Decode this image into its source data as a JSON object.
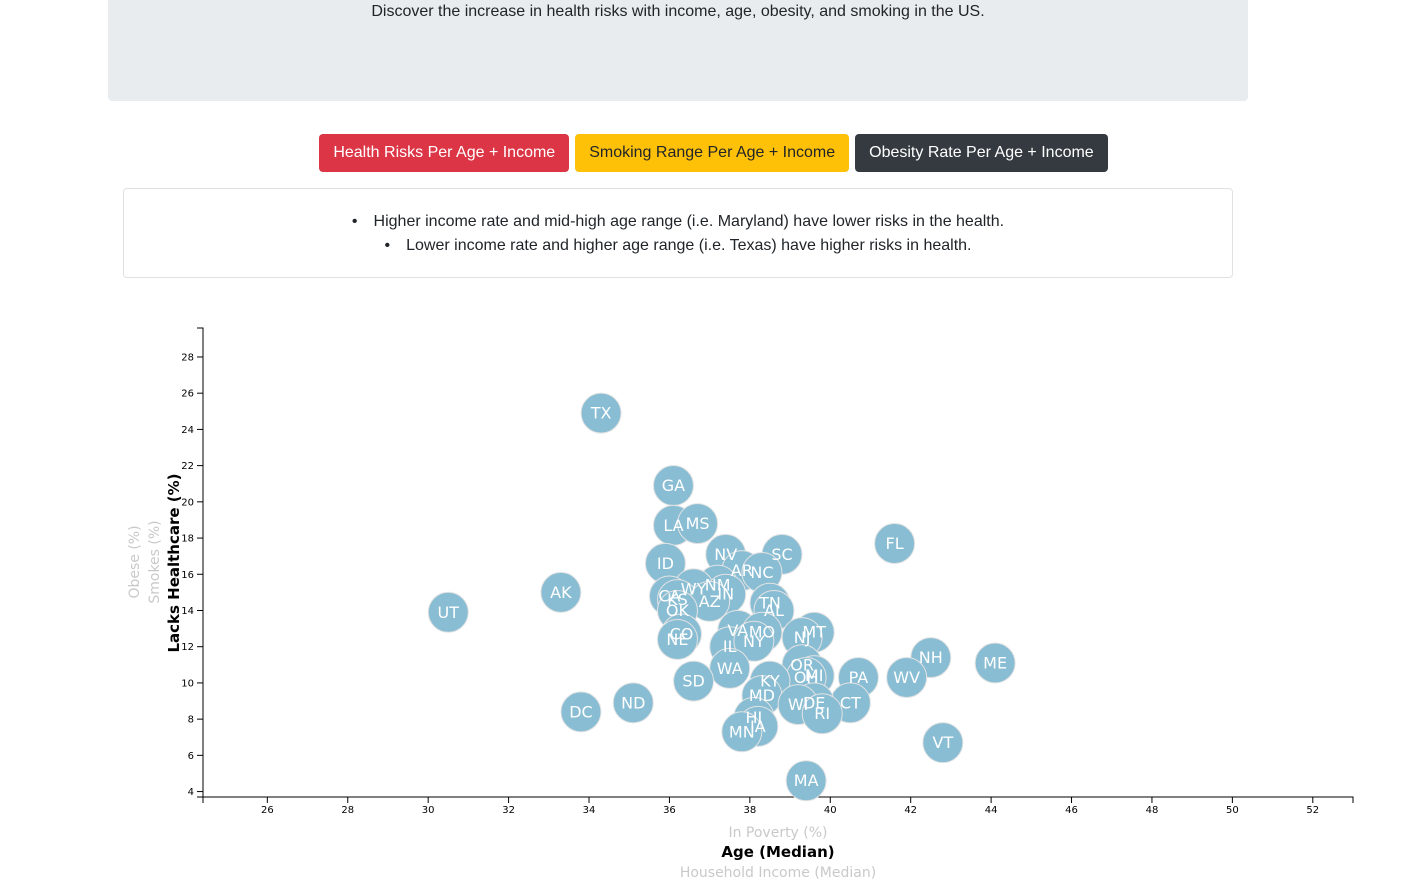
{
  "header": {
    "subtitle": "Discover the increase in health risks with income, age, obesity, and smoking in the US."
  },
  "buttons": {
    "health": "Health Risks Per Age + Income",
    "smoking": "Smoking Range Per Age + Income",
    "obesity": "Obesity Rate Per Age + Income"
  },
  "notes": {
    "line1": "Higher income rate and mid-high age range (i.e. Maryland) have lower risks in the health.",
    "line2": "Lower income rate and higher age range (i.e. Texas) have higher risks in health."
  },
  "colors": {
    "circle": "#89bdd3",
    "danger": "#dc3545",
    "warning": "#ffc107",
    "dark": "#343a40"
  },
  "chart_data": {
    "type": "scatter",
    "title": "",
    "xlabel": "Age (Median)",
    "ylabel": "Lacks Healthcare (%)",
    "x_inactive_labels": [
      "In Poverty (%)",
      "Household Income (Median)"
    ],
    "y_inactive_labels": [
      "Smokes (%)",
      "Obese (%)"
    ],
    "xlim": [
      24.4,
      53
    ],
    "ylim": [
      3.7,
      29.6
    ],
    "x_ticks": [
      26,
      28,
      30,
      32,
      34,
      36,
      38,
      40,
      42,
      44,
      46,
      48,
      50,
      52
    ],
    "y_ticks": [
      4,
      6,
      8,
      10,
      12,
      14,
      16,
      18,
      20,
      22,
      24,
      26,
      28
    ],
    "grid": false,
    "legend": "none",
    "points": [
      {
        "label": "TX",
        "x": 34.3,
        "y": 24.9
      },
      {
        "label": "GA",
        "x": 36.1,
        "y": 20.9
      },
      {
        "label": "LA",
        "x": 36.1,
        "y": 18.7
      },
      {
        "label": "MS",
        "x": 36.7,
        "y": 18.8
      },
      {
        "label": "FL",
        "x": 41.6,
        "y": 17.7
      },
      {
        "label": "NV",
        "x": 37.4,
        "y": 17.1
      },
      {
        "label": "SC",
        "x": 38.8,
        "y": 17.1
      },
      {
        "label": "ID",
        "x": 35.9,
        "y": 16.6
      },
      {
        "label": "AR",
        "x": 37.8,
        "y": 16.2
      },
      {
        "label": "NC",
        "x": 38.3,
        "y": 16.1
      },
      {
        "label": "AK",
        "x": 33.3,
        "y": 15.0
      },
      {
        "label": "UT",
        "x": 30.5,
        "y": 13.9
      },
      {
        "label": "NM",
        "x": 37.2,
        "y": 15.4
      },
      {
        "label": "WY",
        "x": 36.6,
        "y": 15.2
      },
      {
        "label": "CA",
        "x": 36.0,
        "y": 14.8
      },
      {
        "label": "KS",
        "x": 36.2,
        "y": 14.6
      },
      {
        "label": "IN",
        "x": 37.4,
        "y": 14.9
      },
      {
        "label": "AZ",
        "x": 37.0,
        "y": 14.5
      },
      {
        "label": "OK",
        "x": 36.2,
        "y": 14.0
      },
      {
        "label": "TN",
        "x": 38.5,
        "y": 14.4
      },
      {
        "label": "AL",
        "x": 38.6,
        "y": 14.0
      },
      {
        "label": "CO",
        "x": 36.3,
        "y": 12.7
      },
      {
        "label": "NE",
        "x": 36.2,
        "y": 12.4
      },
      {
        "label": "VA",
        "x": 37.7,
        "y": 12.9
      },
      {
        "label": "MO",
        "x": 38.3,
        "y": 12.8
      },
      {
        "label": "MT",
        "x": 39.6,
        "y": 12.8
      },
      {
        "label": "NJ",
        "x": 39.3,
        "y": 12.5
      },
      {
        "label": "IL",
        "x": 37.5,
        "y": 12.0
      },
      {
        "label": "NY",
        "x": 38.1,
        "y": 12.3
      },
      {
        "label": "NH",
        "x": 42.5,
        "y": 11.4
      },
      {
        "label": "ME",
        "x": 44.1,
        "y": 11.1
      },
      {
        "label": "WA",
        "x": 37.5,
        "y": 10.8
      },
      {
        "label": "OR",
        "x": 39.3,
        "y": 11.0
      },
      {
        "label": "MI",
        "x": 39.6,
        "y": 10.4
      },
      {
        "label": "OH",
        "x": 39.4,
        "y": 10.3
      },
      {
        "label": "SD",
        "x": 36.6,
        "y": 10.1
      },
      {
        "label": "KY",
        "x": 38.5,
        "y": 10.1
      },
      {
        "label": "PA",
        "x": 40.7,
        "y": 10.3
      },
      {
        "label": "WV",
        "x": 41.9,
        "y": 10.3
      },
      {
        "label": "MD",
        "x": 38.3,
        "y": 9.3
      },
      {
        "label": "CT",
        "x": 40.5,
        "y": 8.9
      },
      {
        "label": "DE",
        "x": 39.6,
        "y": 8.9
      },
      {
        "label": "WI",
        "x": 39.2,
        "y": 8.8
      },
      {
        "label": "RI",
        "x": 39.8,
        "y": 8.3
      },
      {
        "label": "ND",
        "x": 35.1,
        "y": 8.9
      },
      {
        "label": "DC",
        "x": 33.8,
        "y": 8.4
      },
      {
        "label": "HI",
        "x": 38.1,
        "y": 8.1
      },
      {
        "label": "IA",
        "x": 38.2,
        "y": 7.6
      },
      {
        "label": "MN",
        "x": 37.8,
        "y": 7.3
      },
      {
        "label": "VT",
        "x": 42.8,
        "y": 6.7
      },
      {
        "label": "MA",
        "x": 39.4,
        "y": 4.6
      }
    ]
  }
}
